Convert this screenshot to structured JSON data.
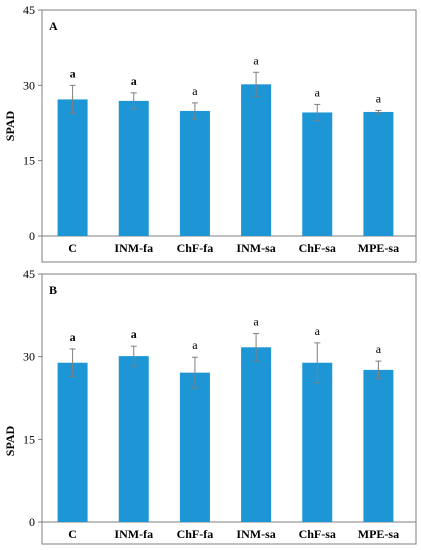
{
  "chart_data": [
    {
      "type": "bar",
      "panel": "A",
      "categories": [
        "C",
        "INM-fa",
        "ChF-fa",
        "INM-sa",
        "ChF-sa",
        "MPE-sa"
      ],
      "series": [
        {
          "values": [
            27.2,
            26.9,
            24.9,
            30.2,
            24.6,
            24.7
          ],
          "errors": [
            2.8,
            1.6,
            1.6,
            2.4,
            1.6,
            0.3
          ]
        }
      ],
      "significance": [
        "a",
        "a",
        "a",
        "a",
        "a",
        "a"
      ],
      "significance_bold": [
        true,
        true,
        false,
        false,
        false,
        false
      ],
      "ylabel": "SPAD",
      "ylim": [
        0,
        45
      ],
      "yticks": [
        "0",
        "15",
        "30",
        "45"
      ],
      "bar_color": "#1e96d6",
      "error_color": "#7f7f7f",
      "grid": false
    },
    {
      "type": "bar",
      "panel": "B",
      "categories": [
        "C",
        "INM-fa",
        "ChF-fa",
        "INM-sa",
        "ChF-sa",
        "MPE-sa"
      ],
      "series": [
        {
          "values": [
            28.9,
            30.1,
            27.1,
            31.7,
            28.9,
            27.6
          ],
          "errors": [
            2.5,
            1.8,
            2.8,
            2.5,
            3.6,
            1.6
          ]
        }
      ],
      "significance": [
        "a",
        "a",
        "a",
        "a",
        "a",
        "a"
      ],
      "significance_bold": [
        true,
        true,
        false,
        false,
        false,
        false
      ],
      "ylabel": "SPAD",
      "ylim": [
        0,
        45
      ],
      "yticks": [
        "0",
        "15",
        "30",
        "45"
      ],
      "bar_color": "#1e96d6",
      "error_color": "#7f7f7f",
      "grid": false
    }
  ]
}
